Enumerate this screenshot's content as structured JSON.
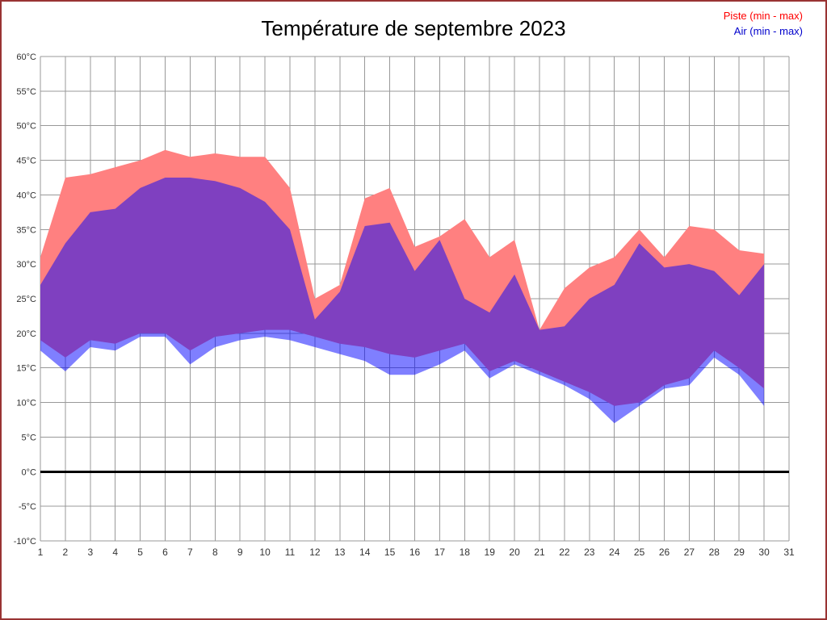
{
  "title": "Température de septembre 2023",
  "legend": {
    "piste_label": "Piste (min - max)",
    "air_label": "Air (min - max)",
    "piste_color": "#ff0000",
    "air_color": "#0000cc"
  },
  "chart_data": {
    "type": "area",
    "title": "Température de septembre 2023",
    "xlabel": "",
    "ylabel": "",
    "ylim": [
      -10,
      60
    ],
    "y_tick_step": 5,
    "y_ticks": [
      {
        "value": 60,
        "label": "60°C"
      },
      {
        "value": 55,
        "label": "55°C"
      },
      {
        "value": 50,
        "label": "50°C"
      },
      {
        "value": 45,
        "label": "45°C"
      },
      {
        "value": 40,
        "label": "40°C"
      },
      {
        "value": 35,
        "label": "35°C"
      },
      {
        "value": 30,
        "label": "30°C"
      },
      {
        "value": 25,
        "label": "25°C"
      },
      {
        "value": 20,
        "label": "20°C"
      },
      {
        "value": 15,
        "label": "15°C"
      },
      {
        "value": 10,
        "label": "10°C"
      },
      {
        "value": 5,
        "label": "5°C"
      },
      {
        "value": 0,
        "label": "0°C"
      },
      {
        "value": -5,
        "label": "-5°C"
      },
      {
        "value": -10,
        "label": "-10°C"
      }
    ],
    "x_ticks": [
      1,
      2,
      3,
      4,
      5,
      6,
      7,
      8,
      9,
      10,
      11,
      12,
      13,
      14,
      15,
      16,
      17,
      18,
      19,
      20,
      21,
      22,
      23,
      24,
      25,
      26,
      27,
      28,
      29,
      30,
      31
    ],
    "days": [
      1,
      2,
      3,
      4,
      5,
      6,
      7,
      8,
      9,
      10,
      11,
      12,
      13,
      14,
      15,
      16,
      17,
      18,
      19,
      20,
      21,
      22,
      23,
      24,
      25,
      26,
      27,
      28,
      29,
      30
    ],
    "series": [
      {
        "name": "piste_max",
        "values": [
          31,
          42.5,
          43,
          44,
          45,
          46.5,
          45.5,
          46,
          45.5,
          45.5,
          41,
          25,
          27,
          39.5,
          41,
          32.5,
          34,
          36.5,
          31,
          33.5,
          20.5,
          26.5,
          29.5,
          31,
          35,
          31,
          35.5,
          35,
          32,
          31.5
        ]
      },
      {
        "name": "piste_min",
        "values": [
          19,
          16.5,
          19,
          18.5,
          20,
          20,
          17.5,
          19.5,
          20,
          20.5,
          20.5,
          19.5,
          18.5,
          18,
          17,
          16.5,
          17.5,
          18.5,
          14.5,
          16,
          14.5,
          13,
          11.5,
          9.5,
          10,
          12.5,
          13.5,
          17.5,
          15,
          12
        ]
      },
      {
        "name": "air_max",
        "values": [
          27,
          33,
          37.5,
          38,
          41,
          42.5,
          42.5,
          42,
          41,
          39,
          35,
          22,
          26,
          35.5,
          36,
          29,
          33.5,
          25,
          23,
          28.5,
          20.5,
          21,
          25,
          27,
          33,
          29.5,
          30,
          29,
          25.5,
          30
        ]
      },
      {
        "name": "air_min",
        "values": [
          17.5,
          14.5,
          18,
          17.5,
          19.5,
          19.5,
          15.5,
          18,
          19,
          19.5,
          19,
          18,
          17,
          16,
          14,
          14,
          15.5,
          17.5,
          13.5,
          15.5,
          14,
          12.5,
          10.5,
          7,
          9.5,
          12,
          12.5,
          16.5,
          14,
          9.5
        ]
      }
    ],
    "legend_entries": [
      "Piste (min - max)",
      "Air (min - max)"
    ],
    "legend_position": "top-right",
    "grid": true,
    "colors": {
      "piste_fill": "#FF8080",
      "air_fill_rgba": "rgba(0,0,255,0.5)",
      "grid": "#999999",
      "zero_line": "#000000"
    }
  }
}
